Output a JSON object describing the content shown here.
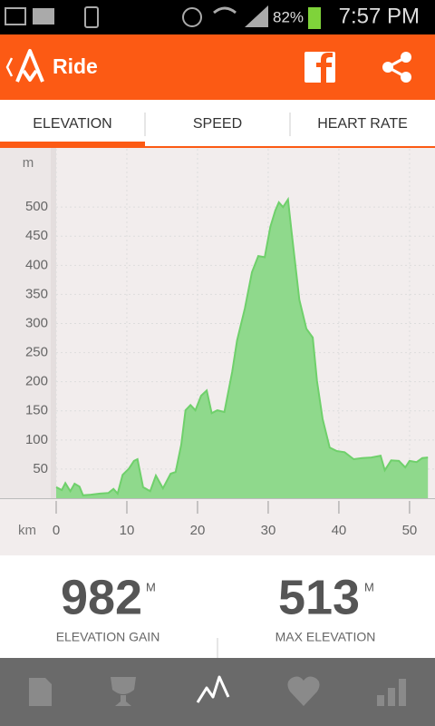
{
  "status_bar": {
    "battery": "82%",
    "time": "7:57 PM"
  },
  "header": {
    "title": "Ride"
  },
  "tabs": [
    "ELEVATION",
    "SPEED",
    "HEART RATE"
  ],
  "chart_data": {
    "type": "area",
    "ylabel": "m",
    "xlabel": "km",
    "x": [
      0,
      0.8,
      1.3,
      2,
      2.6,
      3.3,
      3.8,
      4.9,
      6.2,
      7.4,
      8.1,
      8.7,
      9.4,
      10.3,
      11,
      11.5,
      12.3,
      13.3,
      14.1,
      15.1,
      16.2,
      16.9,
      17.7,
      18.3,
      19,
      19.7,
      20.5,
      21.3,
      22,
      22.8,
      23.8,
      24.9,
      25.6,
      26.7,
      27.7,
      28.6,
      29.5,
      30.3,
      31,
      31.5,
      32.1,
      32.8,
      33.3,
      34.4,
      35.4,
      36.3,
      36.9,
      37.7,
      38.7,
      39.7,
      40.8,
      42.1,
      43.3,
      44.6,
      45.9,
      46.5,
      47.4,
      48.5,
      49.4,
      50,
      51,
      51.8,
      52.6
    ],
    "values": [
      19,
      14,
      26,
      12,
      25,
      20,
      5,
      6,
      8,
      9,
      16,
      8,
      40,
      51,
      64,
      67,
      19,
      12,
      39,
      17,
      42,
      45,
      92,
      151,
      160,
      151,
      176,
      185,
      146,
      151,
      148,
      217,
      271,
      326,
      388,
      416,
      414,
      466,
      494,
      508,
      500,
      513,
      458,
      341,
      291,
      276,
      201,
      136,
      87,
      81,
      79,
      67,
      69,
      70,
      73,
      48,
      65,
      64,
      53,
      64,
      62,
      69,
      70
    ],
    "xlim": [
      0,
      53.6
    ],
    "ylim": [
      0,
      600
    ],
    "xticks": [
      0,
      10,
      20,
      30,
      40,
      50
    ],
    "yticks": [
      50,
      100,
      150,
      200,
      250,
      300,
      350,
      400,
      450,
      500
    ],
    "color": "#8fd98c",
    "line_color": "#6fd06b",
    "grid": true
  },
  "stats": [
    {
      "value": 982,
      "unit": "M",
      "label": "ELEVATION GAIN"
    },
    {
      "value": 513,
      "unit": "M",
      "label": "MAX ELEVATION"
    }
  ]
}
